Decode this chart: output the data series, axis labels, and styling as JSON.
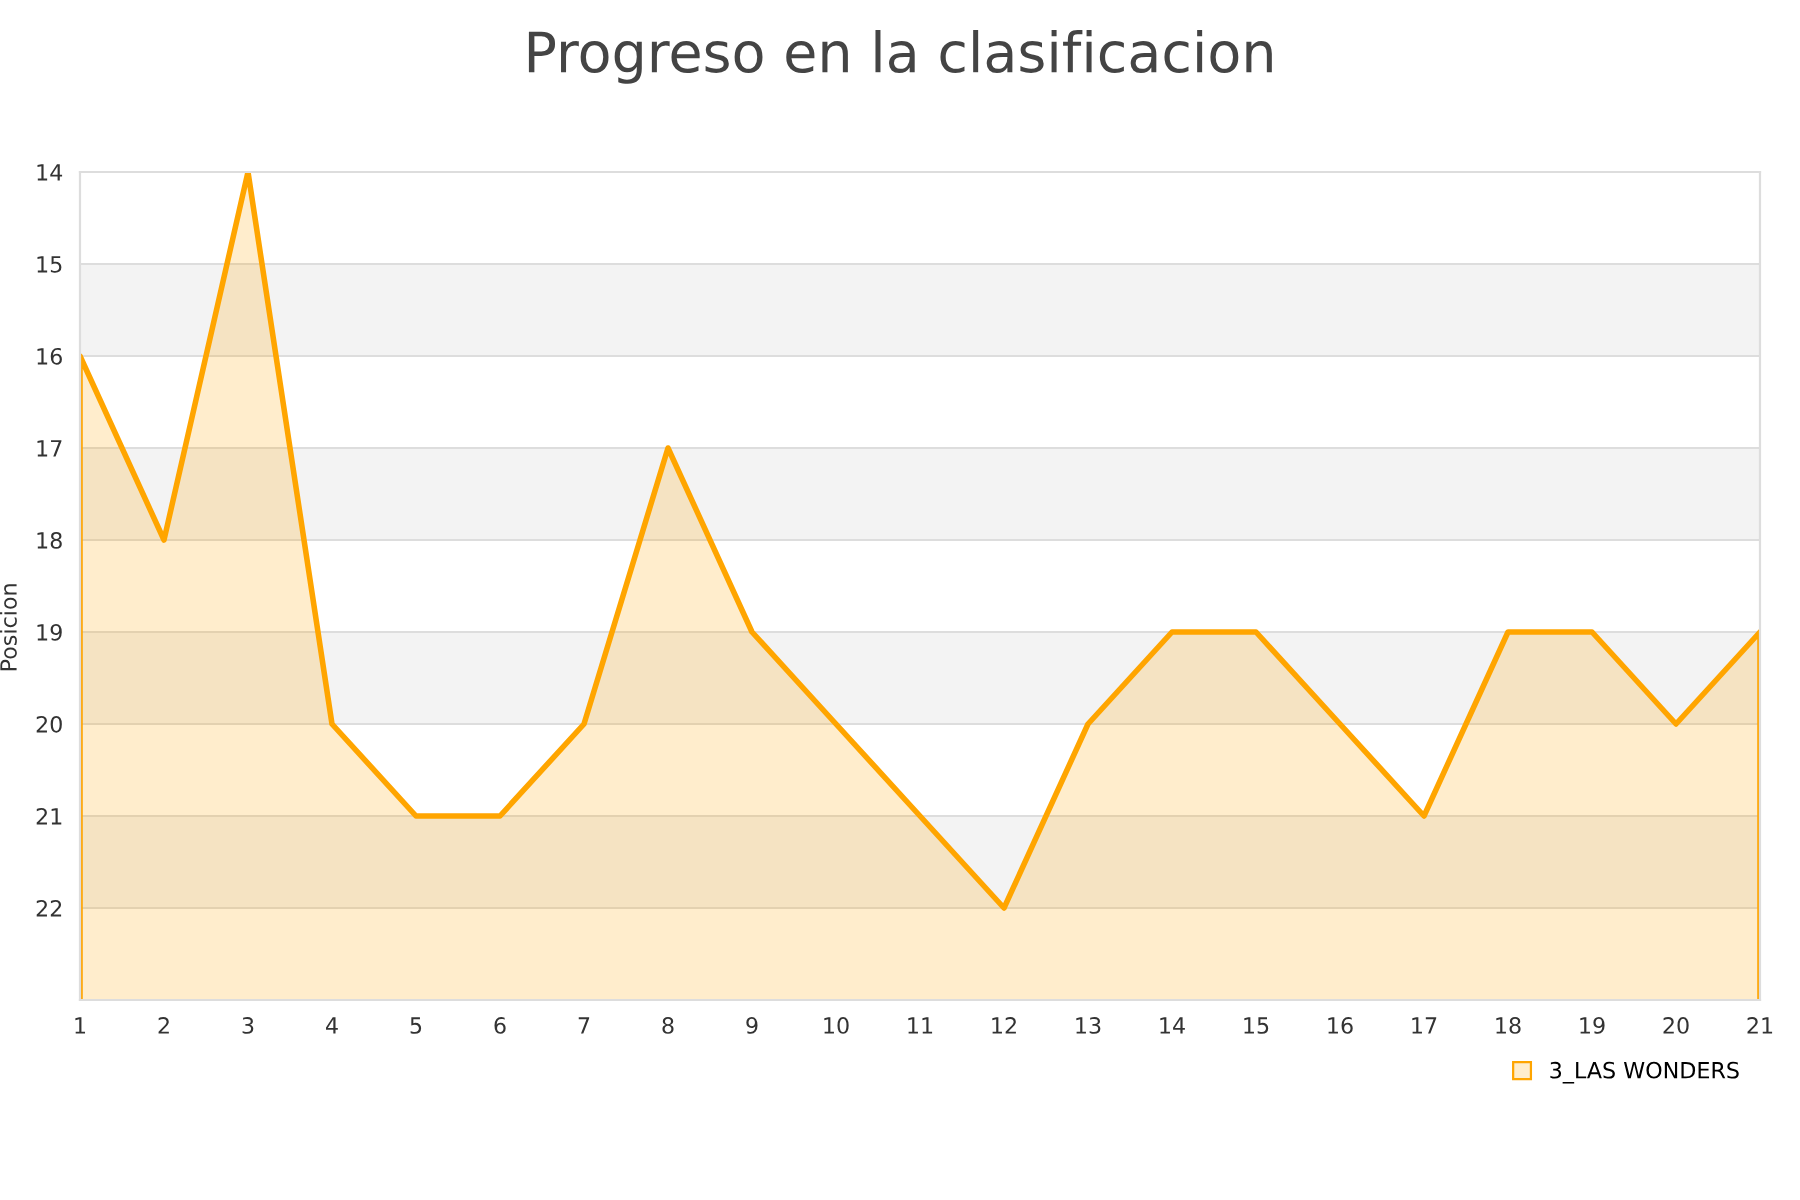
{
  "chart_data": {
    "type": "area",
    "title": "Progreso en la clasificacion",
    "ylabel": "Posicion",
    "x": [
      1,
      2,
      3,
      4,
      5,
      6,
      7,
      8,
      9,
      10,
      11,
      12,
      13,
      14,
      15,
      16,
      17,
      18,
      19,
      20,
      21
    ],
    "series": [
      {
        "name": "3_LAS WONDERS",
        "color": "#ffa500",
        "values": [
          16,
          18,
          14,
          20,
          21,
          21,
          20,
          17,
          19,
          20,
          21,
          22,
          20,
          19,
          19,
          20,
          21,
          19,
          19,
          20,
          19
        ]
      }
    ],
    "xlim": [
      1,
      21
    ],
    "xticks": [
      1,
      2,
      3,
      4,
      5,
      6,
      7,
      8,
      9,
      10,
      11,
      12,
      13,
      14,
      15,
      16,
      17,
      18,
      19,
      20,
      21
    ],
    "ylim": [
      23,
      14
    ],
    "yticks": [
      14,
      15,
      16,
      17,
      18,
      19,
      20,
      21,
      22
    ],
    "bands": [
      {
        "axis": "y",
        "from": 15,
        "to": 16,
        "color": "#f3f3f3"
      },
      {
        "axis": "y",
        "from": 17,
        "to": 18,
        "color": "#f3f3f3"
      },
      {
        "axis": "y",
        "from": 19,
        "to": 20,
        "color": "#f3f3f3"
      },
      {
        "axis": "y",
        "from": 21,
        "to": 22,
        "color": "#f3f3f3"
      }
    ],
    "grid": "y",
    "legend": "bottom right",
    "marker": "none",
    "line_style": "solid"
  }
}
